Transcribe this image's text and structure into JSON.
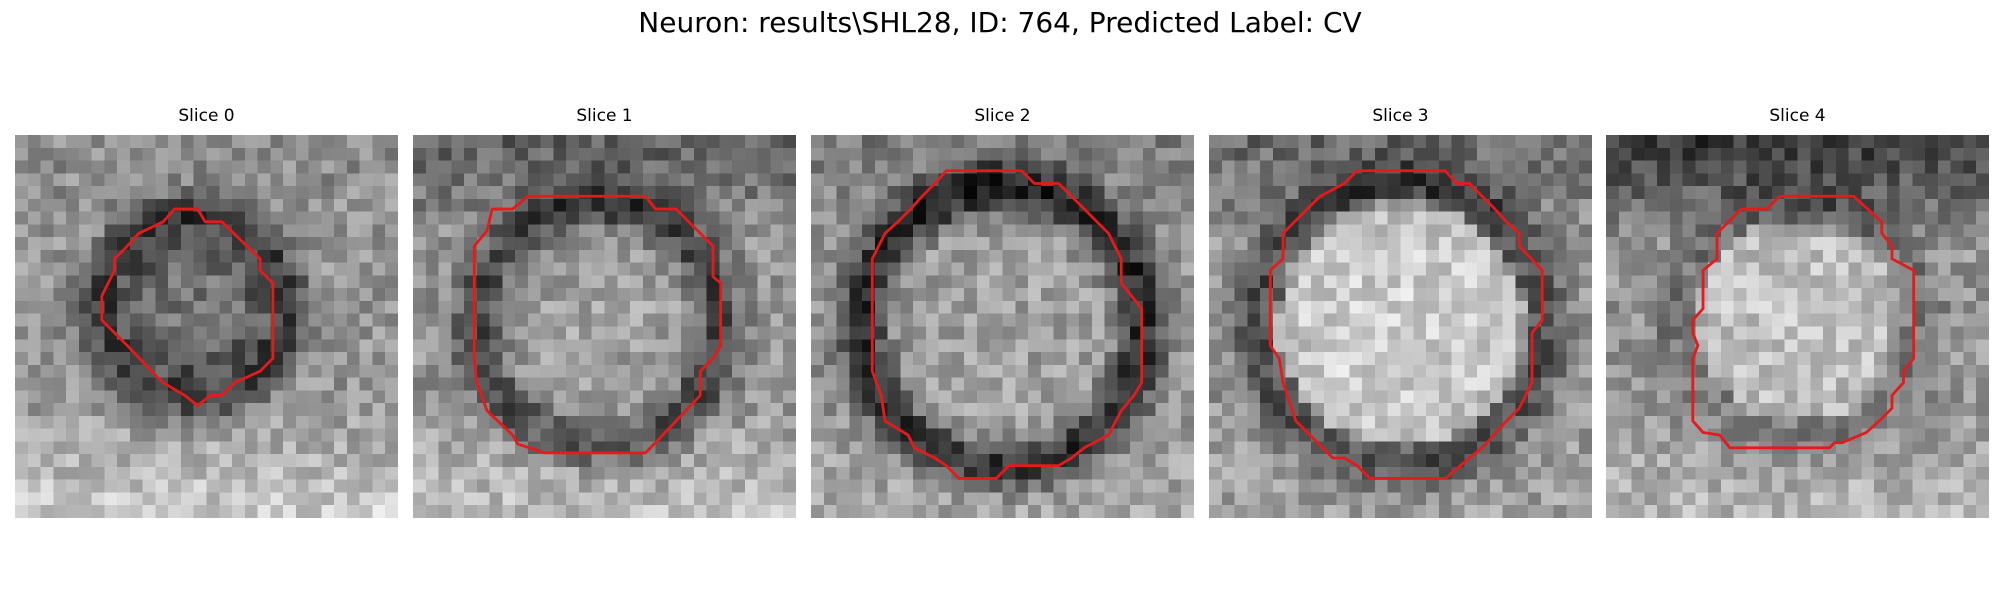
{
  "figure": {
    "title": "Neuron: results\\SHL28, ID: 764, Predicted Label: CV"
  },
  "colors": {
    "contour": "#e41a1c",
    "background": "#ffffff"
  },
  "panels": [
    {
      "title": "Slice 0"
    },
    {
      "title": "Slice 1"
    },
    {
      "title": "Slice 2"
    },
    {
      "title": "Slice 3"
    },
    {
      "title": "Slice 4"
    }
  ]
}
